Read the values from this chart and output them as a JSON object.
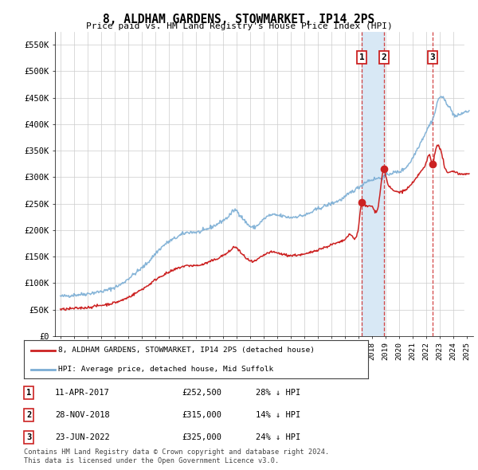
{
  "title": "8, ALDHAM GARDENS, STOWMARKET, IP14 2PS",
  "subtitle": "Price paid vs. HM Land Registry's House Price Index (HPI)",
  "legend_line1": "8, ALDHAM GARDENS, STOWMARKET, IP14 2PS (detached house)",
  "legend_line2": "HPI: Average price, detached house, Mid Suffolk",
  "footnote1": "Contains HM Land Registry data © Crown copyright and database right 2024.",
  "footnote2": "This data is licensed under the Open Government Licence v3.0.",
  "transactions": [
    {
      "label": "1",
      "date": "11-APR-2017",
      "price": 252500,
      "pct": "28%",
      "year": 2017.27
    },
    {
      "label": "2",
      "date": "28-NOV-2018",
      "price": 315000,
      "pct": "14%",
      "year": 2018.91
    },
    {
      "label": "3",
      "date": "23-JUN-2022",
      "price": 325000,
      "pct": "24%",
      "year": 2022.48
    }
  ],
  "shaded_start": 2017.27,
  "shaded_end": 2018.91,
  "ylim": [
    0,
    575000
  ],
  "xlim_start": 1994.6,
  "xlim_end": 2025.5,
  "hpi_color": "#7aadd4",
  "property_color": "#cc2222",
  "plot_bg_color": "#ffffff",
  "grid_color": "#cccccc",
  "shade_color": "#d8e8f5"
}
